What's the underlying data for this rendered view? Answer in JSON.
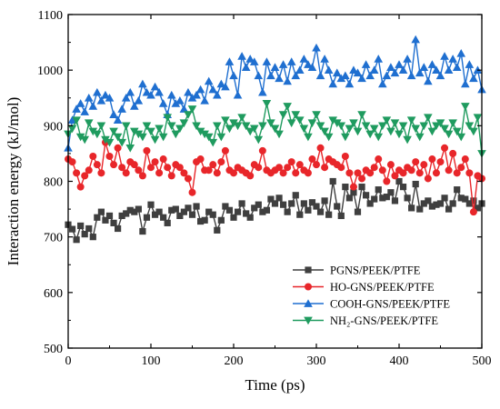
{
  "chart_data": {
    "type": "line",
    "xlabel": "Time (ps)",
    "ylabel": "Interaction energy (kJ/mol)",
    "xlim": [
      0,
      500
    ],
    "ylim": [
      500,
      1100
    ],
    "xticks": [
      "0",
      "100",
      "200",
      "300",
      "400",
      "500"
    ],
    "yticks": [
      "500",
      "600",
      "700",
      "800",
      "900",
      "1000",
      "1100"
    ],
    "grid": false,
    "legend_position": "bottom-right",
    "series": [
      {
        "name": "PGNS/PEEK/PTFE",
        "color": "#3f3f3f",
        "marker": "square",
        "x": [
          0,
          5,
          10,
          15,
          20,
          25,
          30,
          35,
          40,
          45,
          50,
          55,
          60,
          65,
          70,
          75,
          80,
          85,
          90,
          95,
          100,
          105,
          110,
          115,
          120,
          125,
          130,
          135,
          140,
          145,
          150,
          155,
          160,
          165,
          170,
          175,
          180,
          185,
          190,
          195,
          200,
          205,
          210,
          215,
          220,
          225,
          230,
          235,
          240,
          245,
          250,
          255,
          260,
          265,
          270,
          275,
          280,
          285,
          290,
          295,
          300,
          305,
          310,
          315,
          320,
          325,
          330,
          335,
          340,
          345,
          350,
          355,
          360,
          365,
          370,
          375,
          380,
          385,
          390,
          395,
          400,
          405,
          410,
          415,
          420,
          425,
          430,
          435,
          440,
          445,
          450,
          455,
          460,
          465,
          470,
          475,
          480,
          485,
          490,
          495,
          500
        ],
        "y": [
          722,
          714,
          695,
          720,
          705,
          715,
          700,
          735,
          745,
          730,
          738,
          725,
          715,
          738,
          742,
          748,
          745,
          750,
          710,
          735,
          758,
          740,
          745,
          735,
          725,
          748,
          750,
          738,
          745,
          752,
          740,
          755,
          728,
          730,
          745,
          740,
          712,
          730,
          755,
          748,
          735,
          745,
          760,
          742,
          735,
          752,
          758,
          745,
          748,
          768,
          760,
          770,
          758,
          745,
          760,
          775,
          740,
          760,
          748,
          762,
          755,
          745,
          765,
          740,
          800,
          755,
          738,
          790,
          770,
          780,
          745,
          790,
          775,
          760,
          768,
          785,
          770,
          772,
          780,
          765,
          800,
          790,
          770,
          752,
          795,
          750,
          760,
          765,
          755,
          758,
          760,
          770,
          750,
          760,
          785,
          770,
          768,
          760,
          765,
          752,
          760
        ]
      },
      {
        "name": "HO-GNS/PEEK/PTFE",
        "color": "#e8262a",
        "marker": "circle",
        "x": [
          0,
          5,
          10,
          15,
          20,
          25,
          30,
          35,
          40,
          45,
          50,
          55,
          60,
          65,
          70,
          75,
          80,
          85,
          90,
          95,
          100,
          105,
          110,
          115,
          120,
          125,
          130,
          135,
          140,
          145,
          150,
          155,
          160,
          165,
          170,
          175,
          180,
          185,
          190,
          195,
          200,
          205,
          210,
          215,
          220,
          225,
          230,
          235,
          240,
          245,
          250,
          255,
          260,
          265,
          270,
          275,
          280,
          285,
          290,
          295,
          300,
          305,
          310,
          315,
          320,
          325,
          330,
          335,
          340,
          345,
          350,
          355,
          360,
          365,
          370,
          375,
          380,
          385,
          390,
          395,
          400,
          405,
          410,
          415,
          420,
          425,
          430,
          435,
          440,
          445,
          450,
          455,
          460,
          465,
          470,
          475,
          480,
          485,
          490,
          495,
          500
        ],
        "y": [
          840,
          835,
          815,
          790,
          810,
          820,
          845,
          830,
          815,
          870,
          845,
          830,
          860,
          825,
          815,
          835,
          830,
          820,
          810,
          855,
          825,
          835,
          815,
          840,
          825,
          810,
          830,
          825,
          815,
          805,
          780,
          835,
          840,
          820,
          820,
          830,
          815,
          835,
          855,
          820,
          815,
          825,
          820,
          815,
          810,
          830,
          825,
          855,
          820,
          815,
          820,
          825,
          815,
          825,
          835,
          815,
          830,
          820,
          815,
          840,
          830,
          860,
          825,
          840,
          835,
          830,
          825,
          845,
          815,
          790,
          815,
          805,
          820,
          815,
          825,
          840,
          820,
          800,
          830,
          810,
          820,
          815,
          825,
          820,
          835,
          815,
          830,
          805,
          840,
          815,
          835,
          860,
          820,
          850,
          815,
          825,
          840,
          815,
          745,
          810,
          805
        ]
      },
      {
        "name": "COOH-GNS/PEEK/PTFE",
        "color": "#1f6fd0",
        "marker": "triangle-up",
        "x": [
          0,
          5,
          10,
          15,
          20,
          25,
          30,
          35,
          40,
          45,
          50,
          55,
          60,
          65,
          70,
          75,
          80,
          85,
          90,
          95,
          100,
          105,
          110,
          115,
          120,
          125,
          130,
          135,
          140,
          145,
          150,
          155,
          160,
          165,
          170,
          175,
          180,
          185,
          190,
          195,
          200,
          205,
          210,
          215,
          220,
          225,
          230,
          235,
          240,
          245,
          250,
          255,
          260,
          265,
          270,
          275,
          280,
          285,
          290,
          295,
          300,
          305,
          310,
          315,
          320,
          325,
          330,
          335,
          340,
          345,
          350,
          355,
          360,
          365,
          370,
          375,
          380,
          385,
          390,
          395,
          400,
          405,
          410,
          415,
          420,
          425,
          430,
          435,
          440,
          445,
          450,
          455,
          460,
          465,
          470,
          475,
          480,
          485,
          490,
          495,
          500
        ],
        "y": [
          860,
          910,
          930,
          940,
          925,
          950,
          935,
          960,
          945,
          955,
          950,
          920,
          910,
          930,
          950,
          960,
          935,
          945,
          975,
          960,
          955,
          970,
          960,
          940,
          920,
          955,
          940,
          945,
          930,
          960,
          950,
          955,
          965,
          945,
          980,
          965,
          955,
          975,
          970,
          1015,
          990,
          955,
          1025,
          1005,
          1020,
          1015,
          990,
          960,
          1015,
          990,
          1005,
          985,
          1010,
          980,
          1015,
          990,
          1000,
          1020,
          1010,
          1005,
          1040,
          990,
          1020,
          1000,
          975,
          995,
          985,
          990,
          975,
          1000,
          995,
          985,
          1010,
          990,
          1000,
          1020,
          975,
          990,
          1005,
          995,
          1010,
          1000,
          1020,
          990,
          1055,
          995,
          1005,
          980,
          1010,
          1000,
          990,
          1025,
          1000,
          1020,
          1005,
          1030,
          975,
          1010,
          985,
          1000,
          965
        ]
      },
      {
        "name": "NH₂-GNS/PEEK/PTFE",
        "color": "#1f9b5f",
        "marker": "triangle-down",
        "x": [
          0,
          5,
          10,
          15,
          20,
          25,
          30,
          35,
          40,
          45,
          50,
          55,
          60,
          65,
          70,
          75,
          80,
          85,
          90,
          95,
          100,
          105,
          110,
          115,
          120,
          125,
          130,
          135,
          140,
          145,
          150,
          155,
          160,
          165,
          170,
          175,
          180,
          185,
          190,
          195,
          200,
          205,
          210,
          215,
          220,
          225,
          230,
          235,
          240,
          245,
          250,
          255,
          260,
          265,
          270,
          275,
          280,
          285,
          290,
          295,
          300,
          305,
          310,
          315,
          320,
          325,
          330,
          335,
          340,
          345,
          350,
          355,
          360,
          365,
          370,
          375,
          380,
          385,
          390,
          395,
          400,
          405,
          410,
          415,
          420,
          425,
          430,
          435,
          440,
          445,
          450,
          455,
          460,
          465,
          470,
          475,
          480,
          485,
          490,
          495,
          500
        ],
        "y": [
          885,
          895,
          910,
          880,
          875,
          905,
          890,
          885,
          900,
          875,
          870,
          890,
          880,
          870,
          900,
          860,
          890,
          885,
          880,
          900,
          890,
          875,
          895,
          880,
          915,
          900,
          885,
          895,
          905,
          920,
          930,
          900,
          890,
          885,
          880,
          870,
          900,
          880,
          910,
          895,
          905,
          900,
          915,
          900,
          890,
          895,
          875,
          900,
          940,
          905,
          895,
          885,
          920,
          935,
          905,
          920,
          910,
          895,
          880,
          905,
          920,
          900,
          890,
          880,
          910,
          905,
          900,
          880,
          895,
          905,
          890,
          920,
          900,
          885,
          895,
          880,
          900,
          910,
          890,
          905,
          885,
          900,
          875,
          910,
          895,
          880,
          900,
          915,
          890,
          900,
          905,
          895,
          885,
          905,
          890,
          880,
          935,
          900,
          890,
          915,
          850
        ]
      }
    ]
  }
}
